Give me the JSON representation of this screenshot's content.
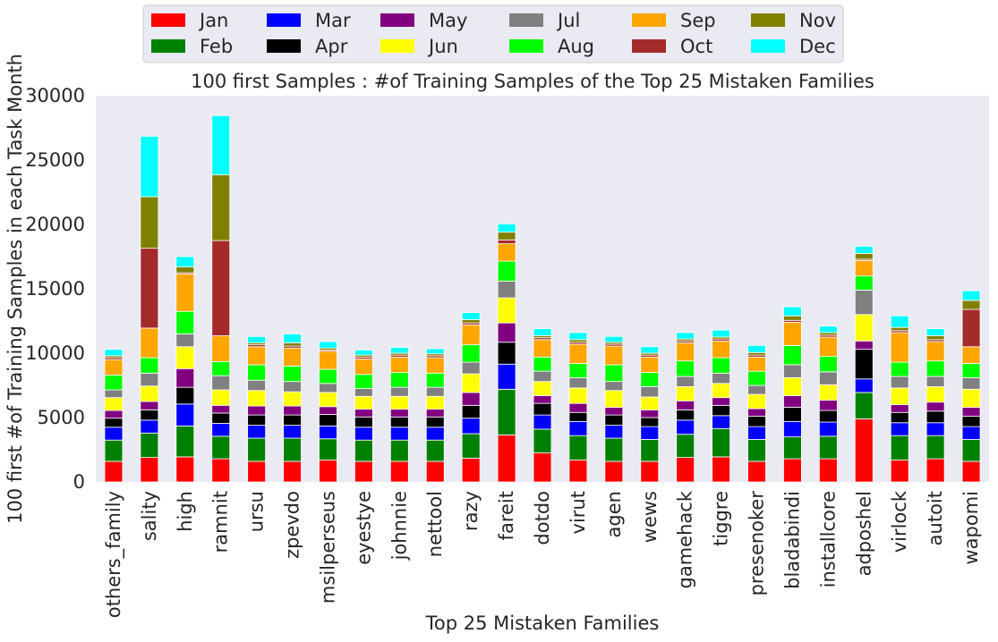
{
  "chart_data": {
    "type": "bar",
    "stacked": true,
    "title": "100 first Samples : #of Training Samples of the Top 25 Mistaken Families",
    "xlabel": "Top 25 Mistaken Families",
    "ylabel": "100 first #of Training Samples in each Task Month",
    "ylim": [
      0,
      30000
    ],
    "yticks": [
      0,
      5000,
      10000,
      15000,
      20000,
      25000,
      30000
    ],
    "ytick_labels": [
      "0",
      "5000",
      "10000",
      "15000",
      "20000",
      "25000",
      "30000"
    ],
    "grid": false,
    "legend_position": "top-center",
    "categories": [
      "others_family",
      "sality",
      "high",
      "ramnit",
      "ursu",
      "zpevdo",
      "msilperseus",
      "eyestye",
      "johnnie",
      "nettool",
      "razy",
      "fareit",
      "dotdo",
      "virut",
      "agen",
      "wews",
      "gamehack",
      "tiggre",
      "presenoker",
      "bladabindi",
      "installcore",
      "adposhel",
      "virlock",
      "autoit",
      "wapomi"
    ],
    "series": [
      {
        "name": "Jan",
        "color": "#ff0000",
        "values": [
          1600,
          1900,
          1950,
          1800,
          1600,
          1600,
          1700,
          1600,
          1600,
          1600,
          1850,
          3650,
          2250,
          1700,
          1600,
          1600,
          1900,
          1950,
          1600,
          1800,
          1800,
          4900,
          1700,
          1800,
          1600
        ]
      },
      {
        "name": "Feb",
        "color": "#008000",
        "values": [
          1650,
          1900,
          2400,
          1750,
          1800,
          1800,
          1650,
          1650,
          1650,
          1650,
          1900,
          3550,
          1850,
          1900,
          1800,
          1700,
          1800,
          2200,
          1700,
          1700,
          1750,
          2050,
          1900,
          1800,
          1700
        ]
      },
      {
        "name": "Mar",
        "color": "#0000ff",
        "values": [
          1000,
          1000,
          1700,
          1000,
          1000,
          1000,
          1000,
          1000,
          1000,
          1000,
          1200,
          1950,
          1100,
          1100,
          1000,
          1000,
          1100,
          1000,
          1000,
          1200,
          1100,
          1050,
          1000,
          1000,
          1000
        ]
      },
      {
        "name": "Apr",
        "color": "#000000",
        "values": [
          700,
          800,
          1300,
          800,
          800,
          800,
          900,
          800,
          800,
          800,
          1000,
          1700,
          900,
          700,
          800,
          700,
          800,
          800,
          800,
          1100,
          900,
          2300,
          800,
          900,
          800
        ]
      },
      {
        "name": "May",
        "color": "#800080",
        "values": [
          600,
          650,
          1450,
          600,
          700,
          700,
          600,
          600,
          600,
          600,
          1000,
          1500,
          600,
          700,
          600,
          600,
          700,
          600,
          600,
          900,
          800,
          650,
          600,
          700,
          700
        ]
      },
      {
        "name": "Jun",
        "color": "#ffff00",
        "values": [
          1000,
          1200,
          1700,
          1200,
          1200,
          1100,
          1100,
          1000,
          1000,
          1000,
          1450,
          1950,
          1100,
          1200,
          1300,
          1000,
          1100,
          1100,
          1100,
          1400,
          1200,
          2050,
          1300,
          1200,
          1400
        ]
      },
      {
        "name": "Jul",
        "color": "#808080",
        "values": [
          600,
          1000,
          1000,
          1100,
          800,
          800,
          700,
          600,
          700,
          700,
          900,
          1300,
          800,
          800,
          700,
          800,
          800,
          800,
          700,
          1000,
          1000,
          1900,
          900,
          800,
          900
        ]
      },
      {
        "name": "Aug",
        "color": "#00ff00",
        "values": [
          1150,
          1200,
          1750,
          1100,
          1200,
          1200,
          1100,
          1100,
          1150,
          1100,
          1350,
          1550,
          1100,
          1100,
          1300,
          1100,
          1200,
          1200,
          1100,
          1500,
          1200,
          1100,
          1100,
          1200,
          1100
        ]
      },
      {
        "name": "Sep",
        "color": "#ffa500",
        "values": [
          1200,
          2300,
          2900,
          2000,
          1400,
          1400,
          1400,
          1200,
          1200,
          1200,
          1550,
          1350,
          1350,
          1500,
          1450,
          1200,
          1400,
          1300,
          1100,
          1800,
          1500,
          1200,
          2300,
          1500,
          1300
        ]
      },
      {
        "name": "Oct",
        "color": "#a52a2a",
        "values": [
          150,
          6200,
          100,
          7400,
          150,
          150,
          100,
          150,
          150,
          150,
          150,
          300,
          150,
          150,
          150,
          150,
          150,
          150,
          150,
          150,
          150,
          100,
          150,
          150,
          2900
        ]
      },
      {
        "name": "Nov",
        "color": "#808000",
        "values": [
          150,
          4000,
          450,
          5100,
          150,
          250,
          150,
          150,
          150,
          150,
          250,
          600,
          150,
          200,
          150,
          150,
          150,
          150,
          200,
          350,
          200,
          450,
          250,
          300,
          700
        ]
      },
      {
        "name": "Dec",
        "color": "#00ffff",
        "values": [
          500,
          4700,
          800,
          4600,
          500,
          700,
          500,
          400,
          450,
          400,
          550,
          650,
          550,
          550,
          450,
          500,
          500,
          550,
          550,
          700,
          500,
          550,
          900,
          550,
          750
        ]
      }
    ]
  }
}
